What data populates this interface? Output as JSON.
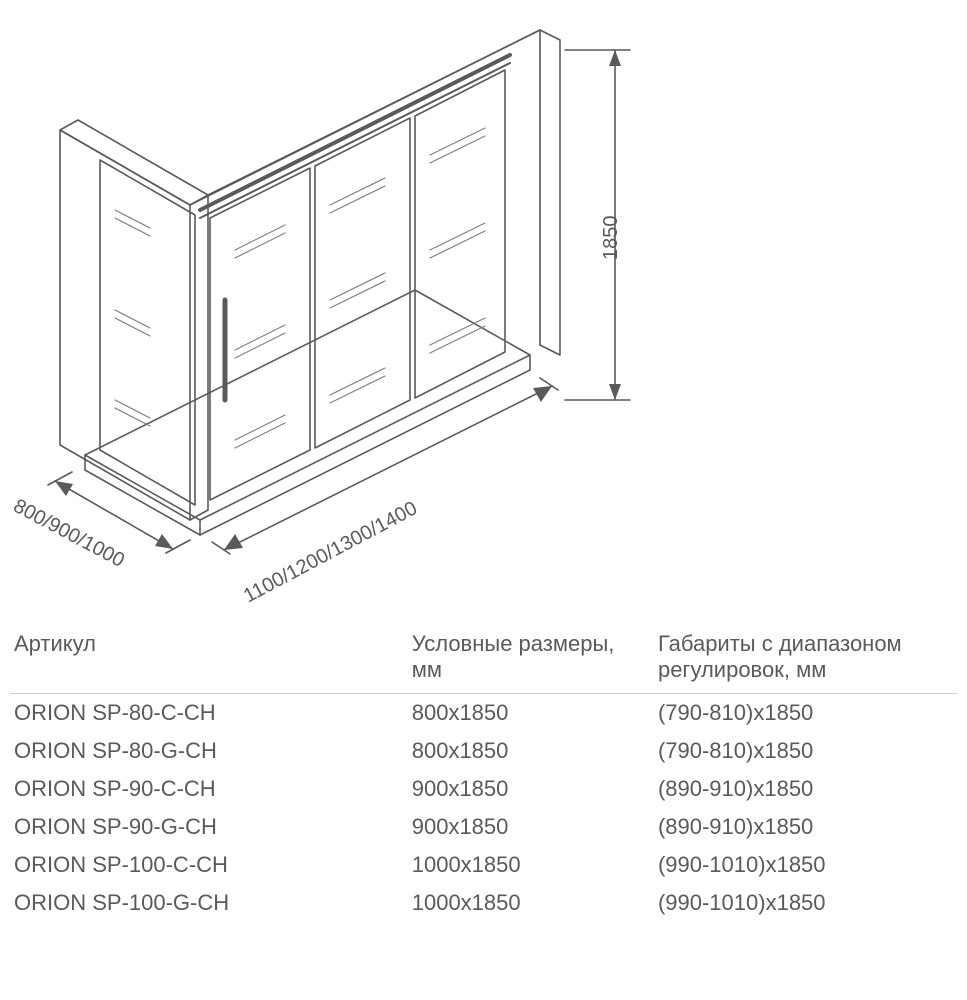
{
  "diagram": {
    "height_label": "1850",
    "depth_label": "800/900/1000",
    "width_label": "1100/1200/1300/1400",
    "stroke_color": "#5a5a5a",
    "stroke_width": 1.5,
    "glass_stroke": "#808080"
  },
  "table": {
    "headers": {
      "article": "Артикул",
      "nominal": "Условные размеры, мм",
      "adjust": "Габариты с диапазоном регулировок, мм"
    },
    "rows": [
      {
        "article": "ORION SP-80-C-CH",
        "nominal": "800x1850",
        "adjust": "(790-810)x1850"
      },
      {
        "article": "ORION SP-80-G-CH",
        "nominal": "800x1850",
        "adjust": "(790-810)x1850"
      },
      {
        "article": "ORION SP-90-C-CH",
        "nominal": "900x1850",
        "adjust": "(890-910)x1850"
      },
      {
        "article": "ORION SP-90-G-CH",
        "nominal": "900x1850",
        "adjust": "(890-910)x1850"
      },
      {
        "article": "ORION SP-100-C-CH",
        "nominal": "1000x1850",
        "adjust": "(990-1010)x1850"
      },
      {
        "article": "ORION SP-100-G-CH",
        "nominal": "1000x1850",
        "adjust": "(990-1010)x1850"
      }
    ]
  }
}
